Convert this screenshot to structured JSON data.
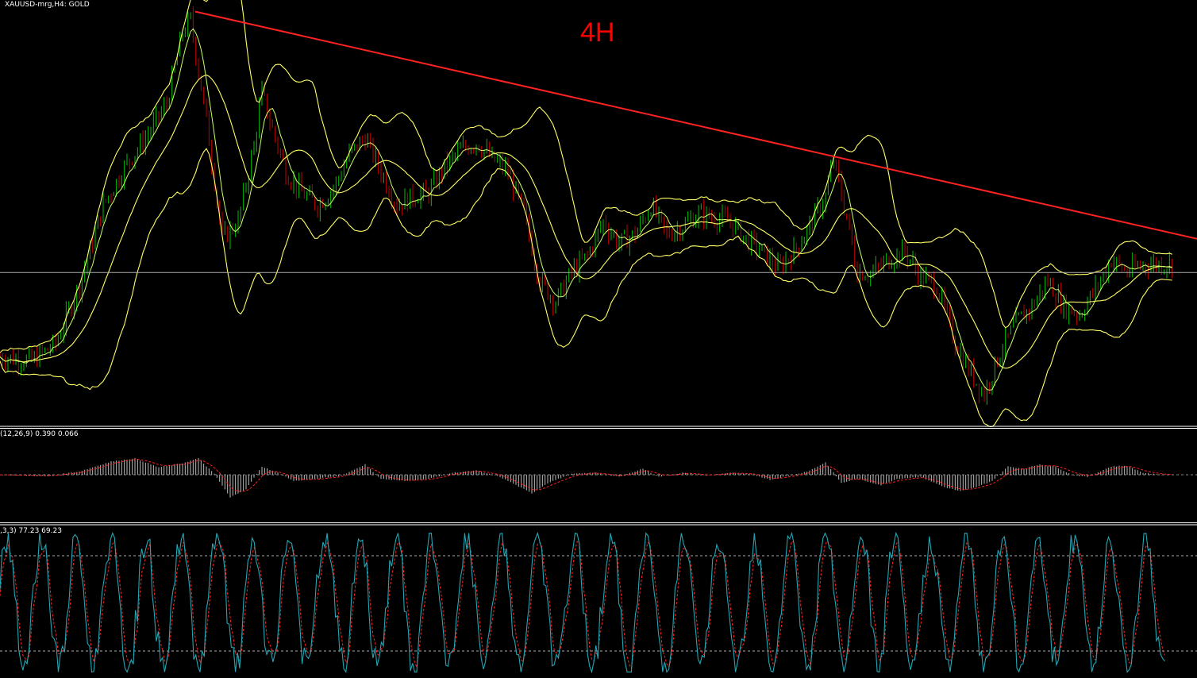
{
  "main_panel": {
    "symbol_label": "XAUUSD-mrg,H4:  GOLD",
    "timeframe_annotation": "4H"
  },
  "macd_panel": {
    "label": "(12,26,9) 0.390 0.066"
  },
  "stoch_panel": {
    "label": ",3,3) 77.23 69.23"
  },
  "colors": {
    "background": "#000000",
    "bull_candle": "#00c000",
    "bear_candle": "#c00000",
    "bands": "#ffff66",
    "ma_line": "#ccff66",
    "trendline": "#ff2222",
    "horizontal_line": "#aaaaaa",
    "histogram": "#bdbdbd",
    "signal": "#ff2222",
    "stoch_main": "#22a6b3",
    "stoch_signal": "#ff2222"
  },
  "chart_data": [
    {
      "type": "candlestick",
      "title": "XAUUSD-mrg,H4:  GOLD",
      "annotation": "4H",
      "price_path": [
        [
          0,
          0.16
        ],
        [
          4,
          0.15
        ],
        [
          7,
          0.19
        ],
        [
          10,
          0.33
        ],
        [
          13,
          0.52
        ],
        [
          16,
          0.62
        ],
        [
          18,
          0.67
        ],
        [
          21,
          0.76
        ],
        [
          23,
          0.93
        ],
        [
          24,
          0.96
        ],
        [
          26,
          0.72
        ],
        [
          28,
          0.44
        ],
        [
          30,
          0.48
        ],
        [
          32,
          0.66
        ],
        [
          33,
          0.79
        ],
        [
          34,
          0.72
        ],
        [
          36,
          0.6
        ],
        [
          38,
          0.55
        ],
        [
          40,
          0.52
        ],
        [
          42,
          0.56
        ],
        [
          44,
          0.64
        ],
        [
          46,
          0.68
        ],
        [
          48,
          0.6
        ],
        [
          50,
          0.52
        ],
        [
          52,
          0.54
        ],
        [
          54,
          0.55
        ],
        [
          56,
          0.61
        ],
        [
          58,
          0.65
        ],
        [
          60,
          0.67
        ],
        [
          62,
          0.63
        ],
        [
          64,
          0.6
        ],
        [
          66,
          0.5
        ],
        [
          68,
          0.34
        ],
        [
          70,
          0.29
        ],
        [
          72,
          0.36
        ],
        [
          74,
          0.4
        ],
        [
          76,
          0.48
        ],
        [
          78,
          0.43
        ],
        [
          80,
          0.45
        ],
        [
          82,
          0.52
        ],
        [
          84,
          0.45
        ],
        [
          86,
          0.47
        ],
        [
          88,
          0.5
        ],
        [
          90,
          0.49
        ],
        [
          92,
          0.48
        ],
        [
          94,
          0.44
        ],
        [
          96,
          0.41
        ],
        [
          98,
          0.37
        ],
        [
          100,
          0.41
        ],
        [
          102,
          0.47
        ],
        [
          104,
          0.54
        ],
        [
          105,
          0.63
        ],
        [
          107,
          0.46
        ],
        [
          108,
          0.36
        ],
        [
          110,
          0.36
        ],
        [
          112,
          0.39
        ],
        [
          114,
          0.41
        ],
        [
          116,
          0.35
        ],
        [
          118,
          0.33
        ],
        [
          120,
          0.21
        ],
        [
          122,
          0.13
        ],
        [
          124,
          0.07
        ],
        [
          126,
          0.17
        ],
        [
          128,
          0.24
        ],
        [
          130,
          0.28
        ],
        [
          132,
          0.34
        ],
        [
          134,
          0.28
        ],
        [
          136,
          0.26
        ],
        [
          138,
          0.32
        ],
        [
          140,
          0.39
        ],
        [
          142,
          0.36
        ],
        [
          144,
          0.38
        ]
      ],
      "bands": "bollinger (upper, middle, lower)",
      "trendline": {
        "from": [
          24,
          0.98
        ],
        "to": [
          148,
          0.44
        ]
      },
      "horizontal_line": 0.36
    },
    {
      "type": "bar",
      "title": "(12,26,9) 0.390 0.066",
      "name": "MACD histogram with signal line",
      "macd_path": [
        [
          0,
          0.0
        ],
        [
          6,
          -0.03
        ],
        [
          10,
          0.08
        ],
        [
          14,
          0.32
        ],
        [
          17,
          0.4
        ],
        [
          20,
          0.18
        ],
        [
          23,
          0.28
        ],
        [
          25,
          0.4
        ],
        [
          27,
          0.02
        ],
        [
          29,
          -0.55
        ],
        [
          31,
          -0.35
        ],
        [
          33,
          0.2
        ],
        [
          35,
          0.05
        ],
        [
          37,
          -0.15
        ],
        [
          40,
          -0.1
        ],
        [
          43,
          -0.02
        ],
        [
          46,
          0.25
        ],
        [
          48,
          -0.1
        ],
        [
          51,
          -0.15
        ],
        [
          54,
          -0.1
        ],
        [
          57,
          0.05
        ],
        [
          60,
          0.1
        ],
        [
          63,
          -0.05
        ],
        [
          65,
          -0.25
        ],
        [
          67,
          -0.45
        ],
        [
          69,
          -0.2
        ],
        [
          72,
          0.02
        ],
        [
          75,
          0.05
        ],
        [
          78,
          -0.05
        ],
        [
          81,
          0.15
        ],
        [
          83,
          -0.05
        ],
        [
          86,
          0.05
        ],
        [
          89,
          -0.02
        ],
        [
          92,
          0.05
        ],
        [
          95,
          0.0
        ],
        [
          97,
          -0.12
        ],
        [
          100,
          0.0
        ],
        [
          102,
          0.1
        ],
        [
          104,
          0.3
        ],
        [
          106,
          -0.2
        ],
        [
          108,
          -0.1
        ],
        [
          111,
          -0.25
        ],
        [
          113,
          -0.1
        ],
        [
          116,
          -0.05
        ],
        [
          119,
          -0.3
        ],
        [
          121,
          -0.4
        ],
        [
          123,
          -0.3
        ],
        [
          125,
          -0.15
        ],
        [
          127,
          0.2
        ],
        [
          129,
          0.15
        ],
        [
          131,
          0.25
        ],
        [
          133,
          0.2
        ],
        [
          135,
          0.0
        ],
        [
          137,
          -0.05
        ],
        [
          140,
          0.2
        ],
        [
          142,
          0.22
        ],
        [
          144,
          0.05
        ],
        [
          146,
          0.0
        ]
      ]
    },
    {
      "type": "line",
      "title": ",3,3) 77.23 69.23",
      "name": "Stochastic oscillator",
      "levels": [
        80,
        20
      ],
      "ylim": [
        0,
        100
      ]
    }
  ]
}
